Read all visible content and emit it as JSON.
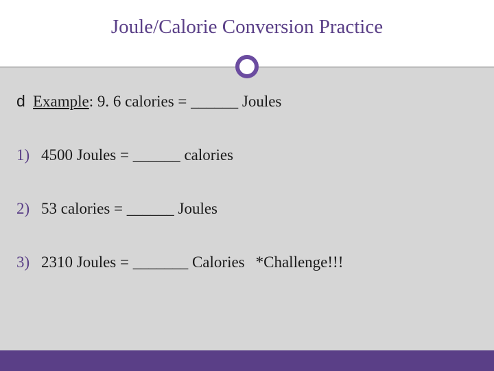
{
  "title": "Joule/Calorie Conversion Practice",
  "colors": {
    "accent": "#5a3f87",
    "circle_border": "#6b4ca0",
    "background_body": "#d6d6d6",
    "background_top": "#ffffff",
    "footer": "#5a3f87",
    "text": "#1a1a1a",
    "hline": "#6a6a6a"
  },
  "typography": {
    "title_fontsize": 29,
    "body_fontsize": 23,
    "font_family": "Georgia"
  },
  "example": {
    "bullet": "d",
    "label": "Example",
    "text": ":  9. 6 calories = ______ Joules"
  },
  "items": [
    {
      "num": "1)",
      "text": "4500 Joules = ______ calories"
    },
    {
      "num": "2)",
      "text": "53 calories = ______ Joules"
    },
    {
      "num": "3)",
      "text": "2310 Joules = _______ Calories",
      "note": "*Challenge!!!"
    }
  ]
}
